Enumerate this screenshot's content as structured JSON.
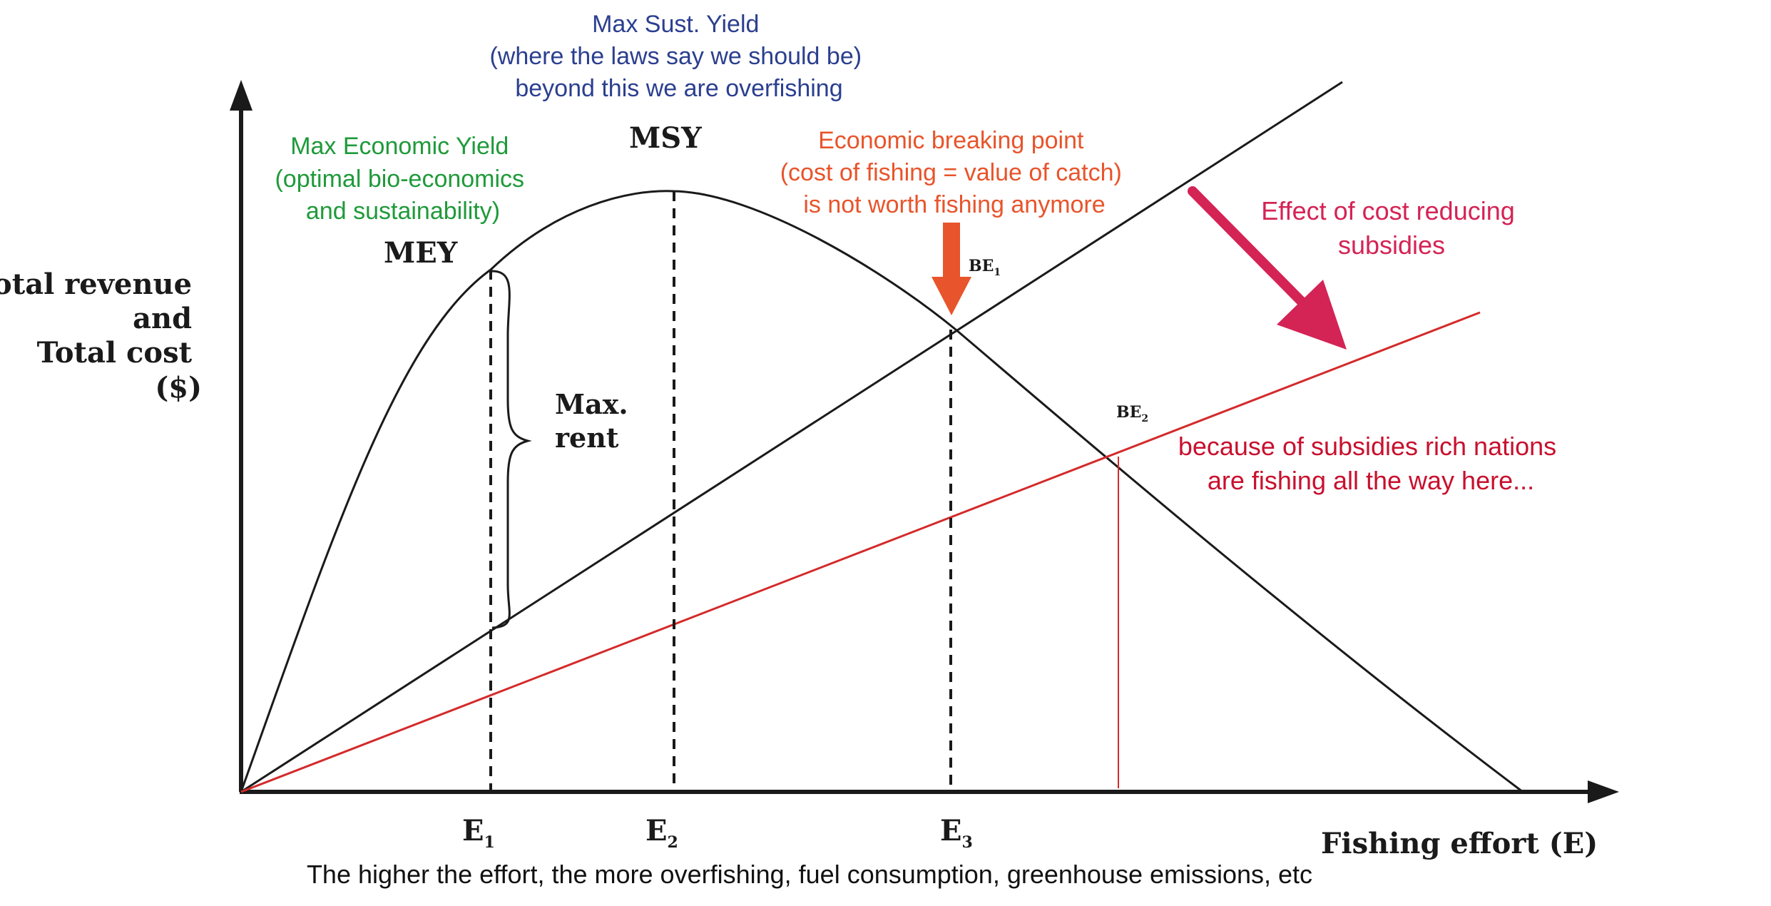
{
  "axes": {
    "y_label_lines": [
      "Total revenue",
      "and",
      "Total cost",
      "($)"
    ],
    "x_label": "Fishing effort (E)",
    "x_ticks": [
      {
        "main": "E",
        "sub": "1"
      },
      {
        "main": "E",
        "sub": "2"
      },
      {
        "main": "E",
        "sub": "3"
      }
    ]
  },
  "points": {
    "mey": "MEY",
    "msy": "MSY",
    "be1": {
      "main": "BE",
      "sub": "1"
    },
    "be2": {
      "main": "BE",
      "sub": "2"
    },
    "max_rent_lines": [
      "Max.",
      "rent"
    ]
  },
  "annotations": {
    "msy_lines": [
      "Max Sust. Yield",
      "(where the laws say we should be)",
      "beyond this we are overfishing"
    ],
    "mey_lines": [
      "Max Economic Yield",
      "(optimal bio-economics",
      "and sustainability)"
    ],
    "breaking_lines": [
      "Economic breaking point",
      "(cost of fishing = value of catch)",
      "is not worth fishing anymore"
    ],
    "subsidy_effect_lines": [
      "Effect of cost reducing",
      "subsidies"
    ],
    "subsidy_rich_lines": [
      "because of subsidies rich nations",
      "are fishing all the way here..."
    ],
    "footer": "The higher the effort, the more overfishing, fuel consumption, greenhouse emissions, etc"
  },
  "colors": {
    "curve": "#1a1a1a",
    "subsidized_cost": "#d42a2a",
    "msy_text": "#2b3f8f",
    "mey_text": "#1f9a3a",
    "breaking_text": "#e8542b",
    "subsidy_effect_text": "#d42355",
    "subsidy_rich_text": "#c8102e"
  }
}
